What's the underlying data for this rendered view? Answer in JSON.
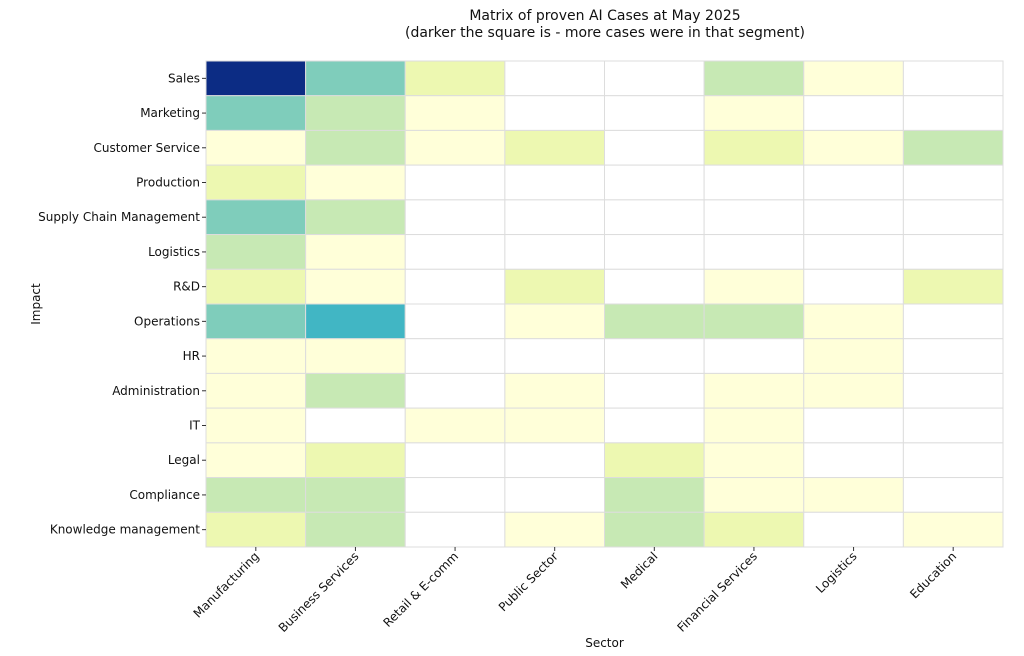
{
  "chart_data": {
    "type": "heatmap",
    "title": "Matrix of proven AI Cases at May 2025",
    "subtitle": "(darker the square is - more cases were in that segment)",
    "xlabel": "Sector",
    "ylabel": "Impact",
    "x_categories": [
      "Manufacturing",
      "Business Services",
      "Retail & E-comm",
      "Public Sector",
      "Medical",
      "Financial Services",
      "Logistics",
      "Education"
    ],
    "y_categories": [
      "Sales",
      "Marketing",
      "Customer Service",
      "Production",
      "Supply Chain Management",
      "Logistics",
      "R&D",
      "Operations",
      "HR",
      "Administration",
      "IT",
      "Legal",
      "Compliance",
      "Knowledge management"
    ],
    "values": [
      [
        8,
        4,
        2,
        0,
        0,
        3,
        1,
        0
      ],
      [
        4,
        3,
        1,
        0,
        0,
        1,
        0,
        0
      ],
      [
        1,
        3,
        1,
        2,
        0,
        2,
        1,
        3
      ],
      [
        2,
        1,
        0,
        0,
        0,
        0,
        0,
        0
      ],
      [
        4,
        3,
        0,
        0,
        0,
        0,
        0,
        0
      ],
      [
        3,
        1,
        0,
        0,
        0,
        0,
        0,
        0
      ],
      [
        2,
        1,
        0,
        2,
        0,
        1,
        0,
        2
      ],
      [
        4,
        5,
        0,
        1,
        3,
        3,
        1,
        0
      ],
      [
        1,
        1,
        0,
        0,
        0,
        0,
        1,
        0
      ],
      [
        1,
        3,
        0,
        1,
        0,
        1,
        1,
        0
      ],
      [
        1,
        0,
        1,
        1,
        0,
        1,
        0,
        0
      ],
      [
        1,
        2,
        0,
        0,
        2,
        1,
        0,
        0
      ],
      [
        3,
        3,
        0,
        0,
        3,
        1,
        1,
        0
      ],
      [
        2,
        3,
        0,
        1,
        3,
        2,
        0,
        1
      ]
    ],
    "colorscale": [
      "#ffffff",
      "#ffffd9",
      "#edf8b1",
      "#c7e9b4",
      "#7fcdbb",
      "#41b6c4",
      "#1d91c0",
      "#225ea8",
      "#0c2c84"
    ],
    "vmin": 0,
    "vmax": 8,
    "grid_color": "#dddddd",
    "colorbar": false
  }
}
